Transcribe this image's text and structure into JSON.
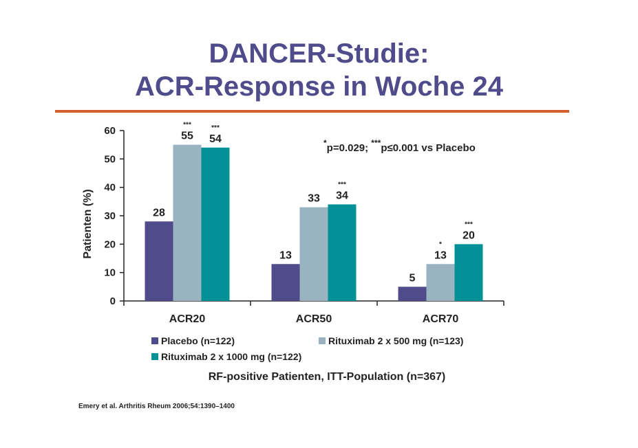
{
  "title_line1": "DANCER-Studie:",
  "title_line2": "ACR-Response in Woche 24",
  "significance_note": {
    "star1": "*",
    "part1": "p=0.029; ",
    "star3": "***",
    "part2": "p≤0.001 vs Placebo"
  },
  "subtitle": "RF-positive Patienten, ITT-Population (n=367)",
  "citation": "Emery et al. Arthritis Rheum 2006;54:1390–1400",
  "colors": {
    "title": "#504C8C",
    "rule": "#D2602E",
    "placebo": "#504C8C",
    "ritux500": "#99B4C0",
    "ritux1000": "#039197"
  },
  "chart_data": {
    "type": "bar",
    "categories": [
      "ACR20",
      "ACR50",
      "ACR70"
    ],
    "ylabel": "Patienten (%)",
    "ylim": [
      0,
      60
    ],
    "yticks": [
      0,
      10,
      20,
      30,
      40,
      50,
      60
    ],
    "legend_position": "bottom",
    "series": [
      {
        "name": "Placebo (n=122)",
        "values": [
          28,
          13,
          5
        ],
        "labels": [
          "28",
          "13",
          "5"
        ],
        "stars": [
          "",
          "",
          ""
        ]
      },
      {
        "name": "Rituximab 2 x 500 mg (n=123)",
        "values": [
          55,
          33,
          13
        ],
        "labels": [
          "55",
          "33",
          "13"
        ],
        "stars": [
          "***",
          "",
          "*"
        ]
      },
      {
        "name": "Rituximab 2 x 1000 mg (n=122)",
        "values": [
          54,
          34,
          20
        ],
        "labels": [
          "54",
          "34",
          "20"
        ],
        "stars": [
          "***",
          "***",
          "***"
        ]
      }
    ]
  }
}
